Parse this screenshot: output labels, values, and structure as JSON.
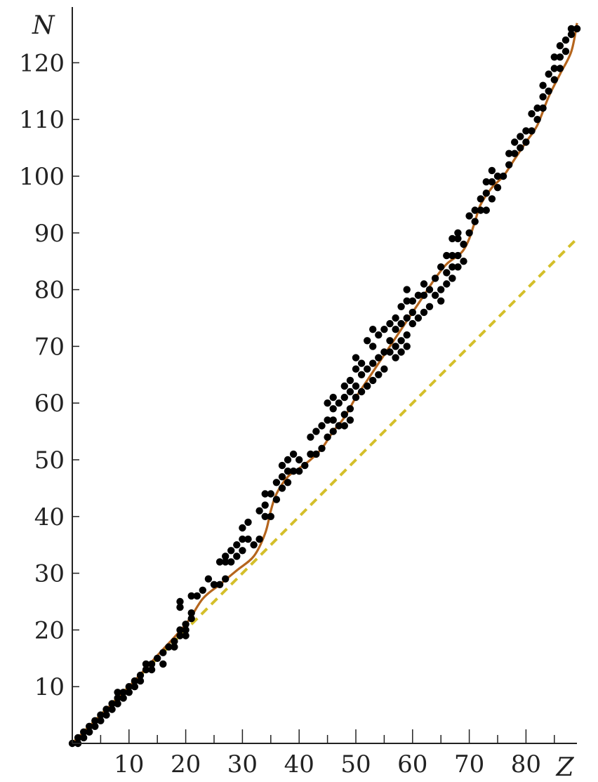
{
  "chart_data": {
    "type": "scatter",
    "title": "",
    "xlabel": "Z",
    "ylabel": "N",
    "xlim": [
      0,
      89
    ],
    "ylim": [
      0,
      128
    ],
    "x_ticks": [
      10,
      20,
      30,
      40,
      50,
      60,
      70,
      80
    ],
    "y_ticks": [
      10,
      20,
      30,
      40,
      50,
      60,
      70,
      80,
      90,
      100,
      110,
      120
    ],
    "grid": false,
    "legend": "none",
    "colors": {
      "points": "#000000",
      "fit": "#b5651d",
      "reference": "#d4bf2a",
      "axis": "#222222"
    },
    "series": [
      {
        "type": "scatter",
        "points": [
          [
            0,
            0
          ],
          [
            1,
            0
          ],
          [
            1,
            1
          ],
          [
            2,
            1
          ],
          [
            2,
            2
          ],
          [
            3,
            2
          ],
          [
            3,
            3
          ],
          [
            4,
            3
          ],
          [
            4,
            4
          ],
          [
            5,
            4
          ],
          [
            5,
            5
          ],
          [
            6,
            5
          ],
          [
            6,
            6
          ],
          [
            7,
            6
          ],
          [
            7,
            7
          ],
          [
            8,
            7
          ],
          [
            8,
            8
          ],
          [
            8,
            9
          ],
          [
            9,
            8
          ],
          [
            9,
            9
          ],
          [
            10,
            9
          ],
          [
            10,
            10
          ],
          [
            11,
            10
          ],
          [
            11,
            11
          ],
          [
            12,
            11
          ],
          [
            12,
            12
          ],
          [
            13,
            13
          ],
          [
            13,
            14
          ],
          [
            14,
            13
          ],
          [
            14,
            14
          ],
          [
            15,
            15
          ],
          [
            16,
            14
          ],
          [
            16,
            16
          ],
          [
            17,
            17
          ],
          [
            18,
            17
          ],
          [
            18,
            18
          ],
          [
            19,
            19
          ],
          [
            19,
            20
          ],
          [
            20,
            19
          ],
          [
            20,
            20
          ],
          [
            20,
            21
          ],
          [
            21,
            22
          ],
          [
            21,
            23
          ],
          [
            19,
            24
          ],
          [
            19,
            25
          ],
          [
            21,
            26
          ],
          [
            22,
            26
          ],
          [
            23,
            27
          ],
          [
            24,
            29
          ],
          [
            25,
            28
          ],
          [
            26,
            28
          ],
          [
            27,
            29
          ],
          [
            26,
            32
          ],
          [
            27,
            32
          ],
          [
            27,
            33
          ],
          [
            28,
            32
          ],
          [
            28,
            34
          ],
          [
            29,
            33
          ],
          [
            29,
            35
          ],
          [
            30,
            34
          ],
          [
            30,
            36
          ],
          [
            30,
            38
          ],
          [
            31,
            36
          ],
          [
            31,
            39
          ],
          [
            32,
            35
          ],
          [
            33,
            36
          ],
          [
            33,
            41
          ],
          [
            34,
            40
          ],
          [
            34,
            42
          ],
          [
            34,
            44
          ],
          [
            35,
            40
          ],
          [
            35,
            44
          ],
          [
            36,
            43
          ],
          [
            36,
            46
          ],
          [
            37,
            45
          ],
          [
            37,
            47
          ],
          [
            37,
            49
          ],
          [
            38,
            46
          ],
          [
            38,
            48
          ],
          [
            38,
            50
          ],
          [
            39,
            48
          ],
          [
            39,
            51
          ],
          [
            40,
            48
          ],
          [
            40,
            50
          ],
          [
            41,
            49
          ],
          [
            42,
            51
          ],
          [
            42,
            54
          ],
          [
            43,
            51
          ],
          [
            43,
            55
          ],
          [
            44,
            52
          ],
          [
            44,
            56
          ],
          [
            45,
            54
          ],
          [
            45,
            57
          ],
          [
            45,
            60
          ],
          [
            46,
            55
          ],
          [
            46,
            57
          ],
          [
            46,
            59
          ],
          [
            46,
            61
          ],
          [
            47,
            56
          ],
          [
            47,
            60
          ],
          [
            48,
            56
          ],
          [
            48,
            58
          ],
          [
            48,
            61
          ],
          [
            48,
            63
          ],
          [
            49,
            57
          ],
          [
            49,
            59
          ],
          [
            49,
            62
          ],
          [
            49,
            64
          ],
          [
            50,
            61
          ],
          [
            50,
            63
          ],
          [
            50,
            66
          ],
          [
            50,
            68
          ],
          [
            51,
            62
          ],
          [
            51,
            65
          ],
          [
            51,
            67
          ],
          [
            52,
            63
          ],
          [
            52,
            66
          ],
          [
            52,
            71
          ],
          [
            53,
            64
          ],
          [
            53,
            67
          ],
          [
            53,
            70
          ],
          [
            53,
            73
          ],
          [
            54,
            65
          ],
          [
            54,
            68
          ],
          [
            54,
            72
          ],
          [
            55,
            66
          ],
          [
            55,
            69
          ],
          [
            55,
            73
          ],
          [
            56,
            69
          ],
          [
            56,
            71
          ],
          [
            56,
            74
          ],
          [
            57,
            68
          ],
          [
            57,
            70
          ],
          [
            57,
            73
          ],
          [
            57,
            75
          ],
          [
            58,
            69
          ],
          [
            58,
            71
          ],
          [
            58,
            74
          ],
          [
            58,
            77
          ],
          [
            59,
            70
          ],
          [
            59,
            72
          ],
          [
            59,
            75
          ],
          [
            59,
            78
          ],
          [
            59,
            80
          ],
          [
            60,
            74
          ],
          [
            60,
            76
          ],
          [
            60,
            78
          ],
          [
            61,
            75
          ],
          [
            61,
            79
          ],
          [
            62,
            76
          ],
          [
            62,
            79
          ],
          [
            62,
            81
          ],
          [
            63,
            77
          ],
          [
            63,
            80
          ],
          [
            64,
            79
          ],
          [
            64,
            82
          ],
          [
            65,
            78
          ],
          [
            65,
            80
          ],
          [
            65,
            84
          ],
          [
            66,
            81
          ],
          [
            66,
            83
          ],
          [
            66,
            86
          ],
          [
            67,
            82
          ],
          [
            67,
            84
          ],
          [
            67,
            86
          ],
          [
            67,
            89
          ],
          [
            68,
            84
          ],
          [
            68,
            86
          ],
          [
            68,
            89
          ],
          [
            68,
            90
          ],
          [
            69,
            85
          ],
          [
            69,
            88
          ],
          [
            70,
            90
          ],
          [
            70,
            93
          ],
          [
            71,
            92
          ],
          [
            71,
            94
          ],
          [
            72,
            94
          ],
          [
            72,
            96
          ],
          [
            73,
            94
          ],
          [
            73,
            97
          ],
          [
            73,
            99
          ],
          [
            74,
            96
          ],
          [
            74,
            99
          ],
          [
            74,
            101
          ],
          [
            75,
            98
          ],
          [
            75,
            100
          ],
          [
            76,
            100
          ],
          [
            77,
            102
          ],
          [
            77,
            104
          ],
          [
            78,
            104
          ],
          [
            78,
            106
          ],
          [
            79,
            105
          ],
          [
            79,
            107
          ],
          [
            80,
            106
          ],
          [
            80,
            108
          ],
          [
            81,
            108
          ],
          [
            81,
            111
          ],
          [
            82,
            110
          ],
          [
            82,
            112
          ],
          [
            83,
            112
          ],
          [
            83,
            114
          ],
          [
            83,
            116
          ],
          [
            84,
            115
          ],
          [
            84,
            118
          ],
          [
            85,
            117
          ],
          [
            85,
            119
          ],
          [
            85,
            121
          ],
          [
            86,
            119
          ],
          [
            86,
            121
          ],
          [
            86,
            123
          ],
          [
            87,
            122
          ],
          [
            87,
            124
          ],
          [
            88,
            125
          ],
          [
            88,
            126
          ],
          [
            89,
            126
          ]
        ]
      },
      {
        "type": "line",
        "style": "solid",
        "points": [
          [
            0,
            0
          ],
          [
            5,
            5
          ],
          [
            10,
            10
          ],
          [
            15,
            15.5
          ],
          [
            20,
            21
          ],
          [
            23,
            25.5
          ],
          [
            26,
            28
          ],
          [
            29,
            30.5
          ],
          [
            32,
            33
          ],
          [
            34,
            37
          ],
          [
            35,
            41
          ],
          [
            36,
            44
          ],
          [
            38,
            47
          ],
          [
            40,
            48.5
          ],
          [
            42,
            50
          ],
          [
            44,
            52
          ],
          [
            46,
            55
          ],
          [
            48,
            57.5
          ],
          [
            50,
            61
          ],
          [
            52,
            64
          ],
          [
            54,
            67
          ],
          [
            56,
            70
          ],
          [
            58,
            73
          ],
          [
            60,
            76
          ],
          [
            62,
            79
          ],
          [
            64,
            82
          ],
          [
            66,
            84.5
          ],
          [
            68,
            86
          ],
          [
            69,
            87
          ],
          [
            70,
            89
          ],
          [
            71,
            92
          ],
          [
            72,
            95
          ],
          [
            74,
            98
          ],
          [
            76,
            100
          ],
          [
            78,
            103
          ],
          [
            80,
            106
          ],
          [
            82,
            109
          ],
          [
            84,
            114
          ],
          [
            86,
            118
          ],
          [
            88,
            122
          ],
          [
            89,
            127
          ]
        ]
      },
      {
        "type": "line",
        "style": "dashed",
        "points": [
          [
            0,
            0
          ],
          [
            89,
            89
          ]
        ]
      }
    ]
  }
}
